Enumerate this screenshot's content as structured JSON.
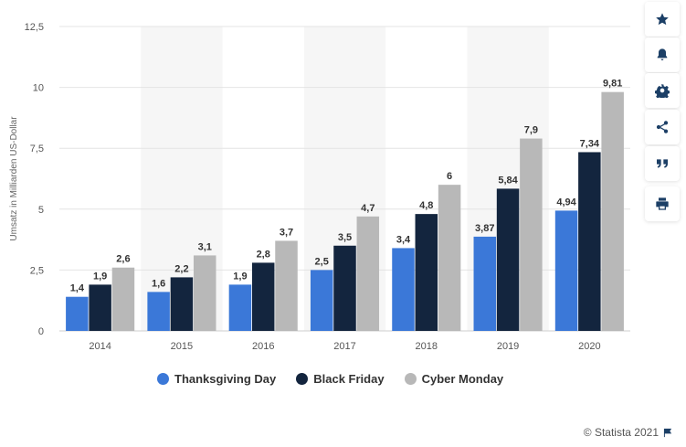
{
  "chart_data": {
    "type": "bar",
    "categories": [
      "2014",
      "2015",
      "2016",
      "2017",
      "2018",
      "2019",
      "2020"
    ],
    "series": [
      {
        "name": "Thanksgiving Day",
        "values": [
          1.4,
          1.6,
          1.9,
          2.5,
          3.4,
          3.87,
          4.94
        ],
        "labels": [
          "1,4",
          "1,6",
          "1,9",
          "2,5",
          "3,4",
          "3,87",
          "4,94"
        ],
        "color": "#3b78d8"
      },
      {
        "name": "Black Friday",
        "values": [
          1.9,
          2.2,
          2.8,
          3.5,
          4.8,
          5.84,
          7.34
        ],
        "labels": [
          "1,9",
          "2,2",
          "2,8",
          "3,5",
          "4,8",
          "5,84",
          "7,34"
        ],
        "color": "#13253e"
      },
      {
        "name": "Cyber Monday",
        "values": [
          2.6,
          3.1,
          3.7,
          4.7,
          6,
          7.9,
          9.81
        ],
        "labels": [
          "2,6",
          "3,1",
          "3,7",
          "4,7",
          "6",
          "7,9",
          "9,81"
        ],
        "color": "#b8b8b8"
      }
    ],
    "ylabel": "Umsatz in Milliarden US-Dollar",
    "ylim": [
      0,
      12.5
    ],
    "yticks": [
      0,
      2.5,
      5,
      7.5,
      10,
      12.5
    ],
    "ytick_labels": [
      "0",
      "2,5",
      "5",
      "7,5",
      "10",
      "12,5"
    ],
    "grid": true,
    "legend_position": "bottom"
  },
  "toolbar": {
    "icons": [
      "star-icon",
      "bell-icon",
      "gear-icon",
      "share-icon",
      "quote-icon",
      "print-icon"
    ]
  },
  "credit": {
    "text": "© Statista 2021"
  }
}
